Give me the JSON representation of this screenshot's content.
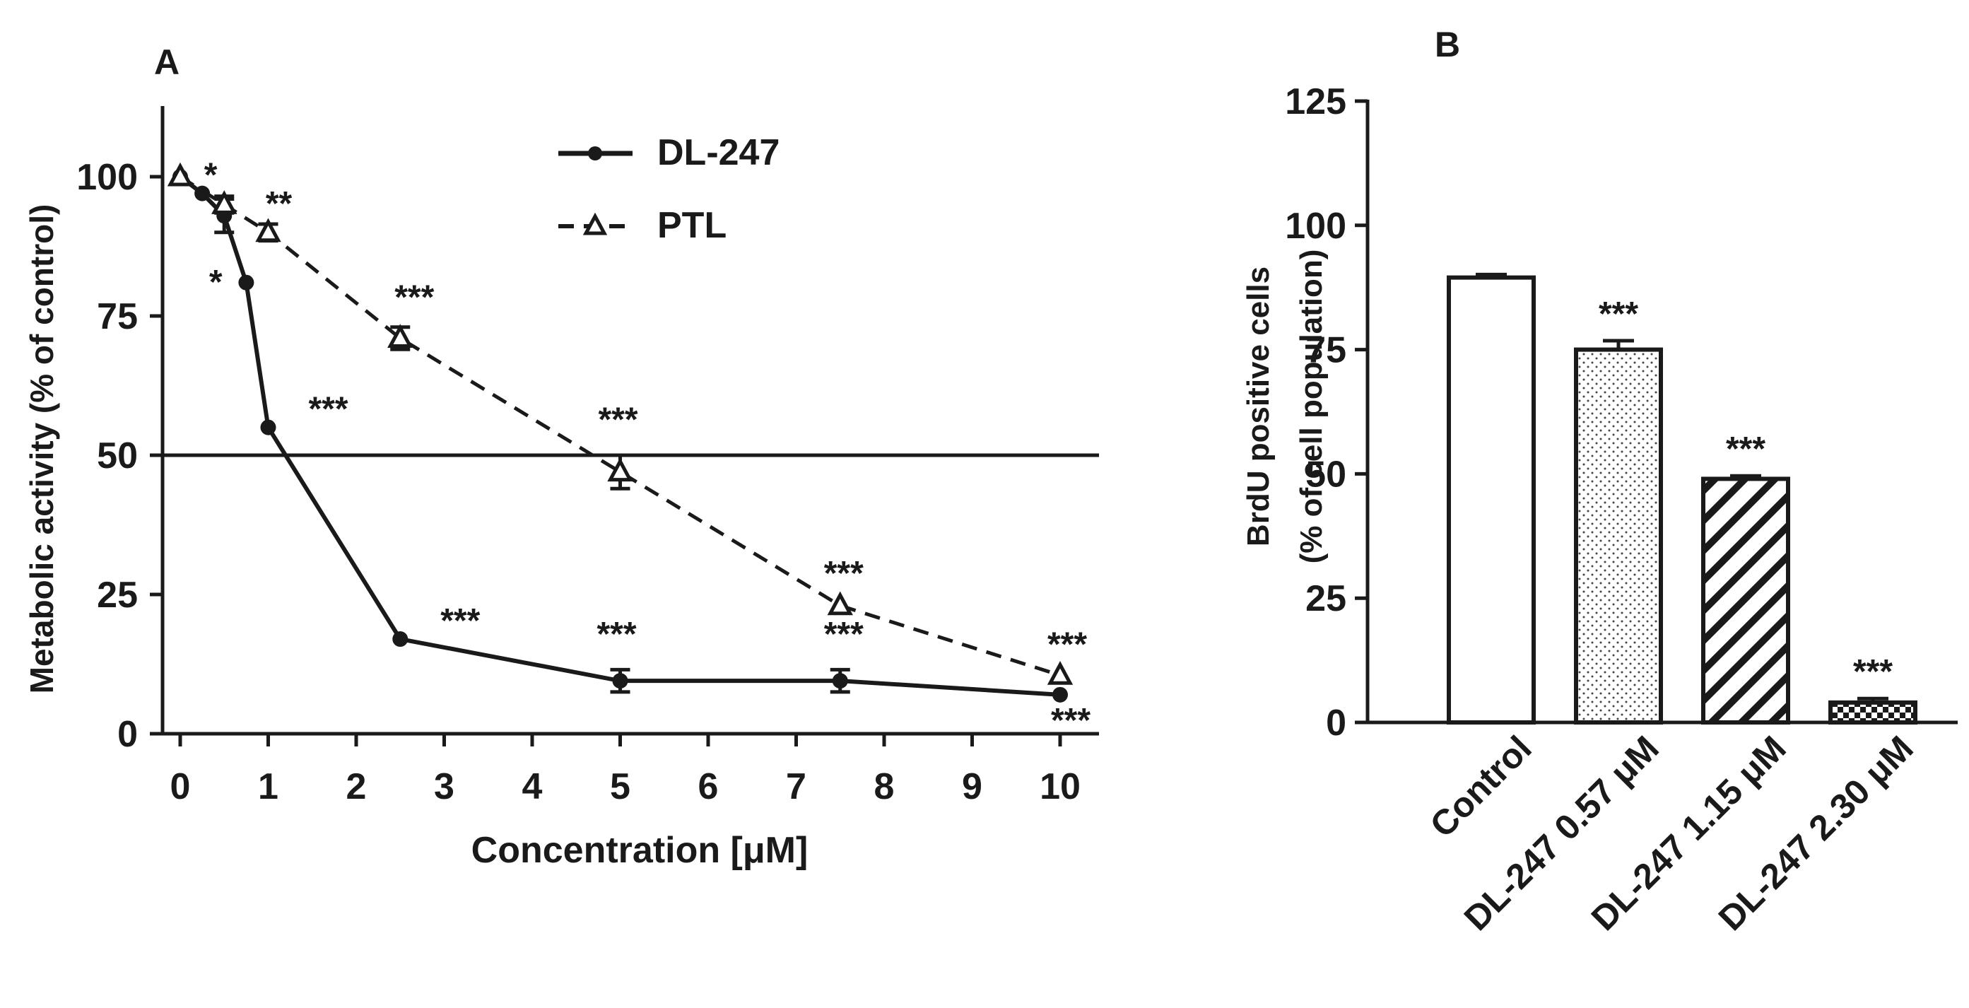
{
  "chart_data": [
    {
      "panel": "A",
      "type": "line",
      "xlabel": "Concentration [μM]",
      "ylabel": "Metabolic activity (% of control)",
      "xlim": [
        0,
        10
      ],
      "ylim": [
        0,
        100
      ],
      "xticks": [
        0,
        1,
        2,
        3,
        4,
        5,
        6,
        7,
        8,
        9,
        10
      ],
      "yticks": [
        0,
        25,
        50,
        75,
        100
      ],
      "reference_line": 50,
      "legend_position": "top-center",
      "series": [
        {
          "name": "DL-247",
          "style": "solid",
          "marker": "filled-circle",
          "points": [
            {
              "x": 0,
              "y": 100,
              "err": 0,
              "sig": ""
            },
            {
              "x": 0.25,
              "y": 97,
              "err": 0,
              "sig": "*"
            },
            {
              "x": 0.5,
              "y": 93,
              "err": 3,
              "sig": "*"
            },
            {
              "x": 0.75,
              "y": 81,
              "err": 0,
              "sig": ""
            },
            {
              "x": 1,
              "y": 55,
              "err": 0,
              "sig": "***"
            },
            {
              "x": 2.5,
              "y": 17,
              "err": 0,
              "sig": "***"
            },
            {
              "x": 5,
              "y": 9.5,
              "err": 2,
              "sig": "***"
            },
            {
              "x": 7.5,
              "y": 9.5,
              "err": 2,
              "sig": "***"
            },
            {
              "x": 10,
              "y": 7,
              "err": 0,
              "sig": "***"
            }
          ]
        },
        {
          "name": "PTL",
          "style": "dashed",
          "marker": "open-triangle",
          "points": [
            {
              "x": 0,
              "y": 100,
              "err": 0,
              "sig": ""
            },
            {
              "x": 0.5,
              "y": 95,
              "err": 1.5,
              "sig": ""
            },
            {
              "x": 1,
              "y": 90,
              "err": 1.5,
              "sig": "**"
            },
            {
              "x": 2.5,
              "y": 71,
              "err": 2,
              "sig": "***"
            },
            {
              "x": 5,
              "y": 47,
              "err": 3,
              "sig": "***"
            },
            {
              "x": 7.5,
              "y": 23,
              "err": 0,
              "sig": "***"
            },
            {
              "x": 10,
              "y": 10.5,
              "err": 0,
              "sig": "***"
            }
          ]
        }
      ]
    },
    {
      "panel": "B",
      "type": "bar",
      "ylabel_line1": "BrdU positive cells",
      "ylabel_line2": "(% of cell population)",
      "ylim": [
        0,
        125
      ],
      "yticks": [
        0,
        25,
        50,
        75,
        100,
        125
      ],
      "categories": [
        "Control",
        "DL-247 0.57  μM",
        "DL-247 1.15  μM",
        "DL-247 2.30  μM"
      ],
      "values": [
        89.5,
        75,
        49,
        4
      ],
      "errors": [
        0.6,
        1.8,
        0.6,
        0.8
      ],
      "significance": [
        "",
        "***",
        "***",
        "***"
      ],
      "fills": [
        "empty",
        "dots",
        "diagonal-stripes",
        "checkered"
      ]
    }
  ]
}
